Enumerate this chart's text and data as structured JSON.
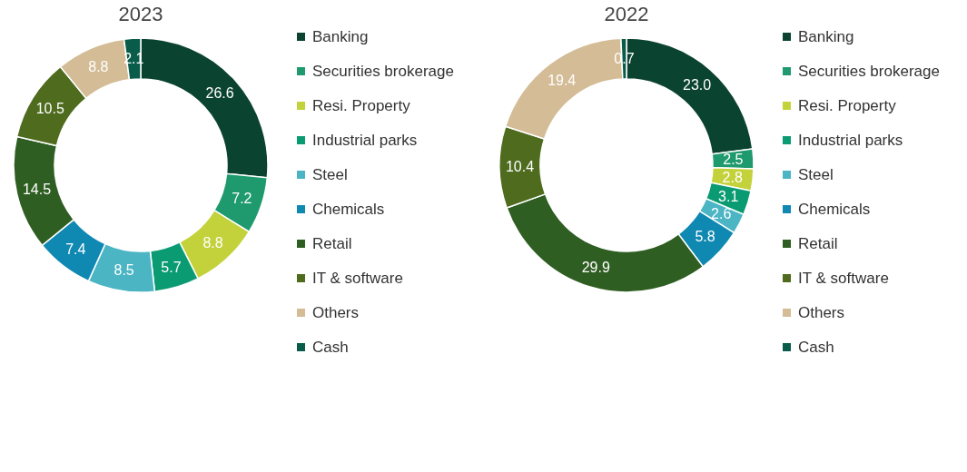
{
  "chart_data": [
    {
      "type": "donut",
      "title": "2023",
      "legend": "right",
      "categories": [
        "Banking",
        "Securities brokerage",
        "Resi. Property",
        "Industrial parks",
        "Steel",
        "Chemicals",
        "Retail",
        "IT & software",
        "Others",
        "Cash"
      ],
      "values": [
        26.6,
        7.2,
        8.8,
        5.7,
        8.5,
        7.4,
        14.5,
        10.5,
        8.8,
        2.1
      ],
      "value_labels": [
        "26.6",
        "7.2",
        "8.8",
        "5.7",
        "8.5",
        "7.4",
        "14.5",
        "10.5",
        "8.8",
        "2.1"
      ],
      "colors": [
        "#0b4331",
        "#1e9a6e",
        "#c3d23b",
        "#0a9b72",
        "#4bb5c4",
        "#0f89b2",
        "#2f5e22",
        "#4e6b1e",
        "#d3bc96",
        "#0a5c4a"
      ]
    },
    {
      "type": "donut",
      "title": "2022",
      "legend": "right",
      "categories": [
        "Banking",
        "Securities brokerage",
        "Resi. Property",
        "Industrial parks",
        "Steel",
        "Chemicals",
        "Retail",
        "IT & software",
        "Others",
        "Cash"
      ],
      "values": [
        23.0,
        2.5,
        2.8,
        3.1,
        2.6,
        5.8,
        29.9,
        10.4,
        19.4,
        0.7
      ],
      "value_labels": [
        "23.0",
        "2.5",
        "2.8",
        "3.1",
        "2.6",
        "5.8",
        "29.9",
        "10.4",
        "19.4",
        "0.7"
      ],
      "colors": [
        "#0b4331",
        "#1e9a6e",
        "#c3d23b",
        "#0a9b72",
        "#4bb5c4",
        "#0f89b2",
        "#2f5e22",
        "#4e6b1e",
        "#d3bc96",
        "#0a5c4a"
      ]
    }
  ]
}
